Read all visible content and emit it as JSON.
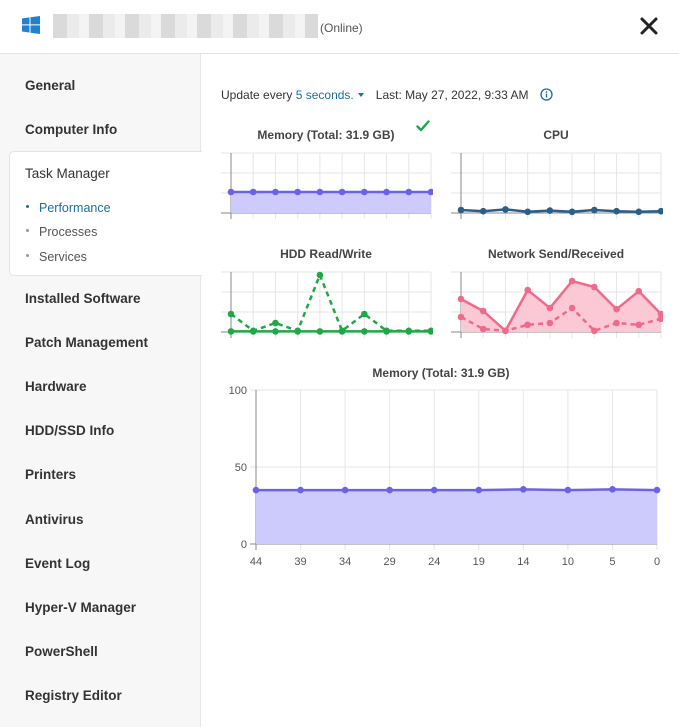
{
  "header": {
    "status": "(Online)"
  },
  "sidebar": {
    "items": [
      {
        "label": "General"
      },
      {
        "label": "Computer Info"
      },
      {
        "label": "Task Manager"
      },
      {
        "label": "Installed Software"
      },
      {
        "label": "Patch Management"
      },
      {
        "label": "Hardware"
      },
      {
        "label": "HDD/SSD Info"
      },
      {
        "label": "Printers"
      },
      {
        "label": "Antivirus"
      },
      {
        "label": "Event Log"
      },
      {
        "label": "Hyper-V Manager"
      },
      {
        "label": "PowerShell"
      },
      {
        "label": "Registry Editor"
      }
    ],
    "task_manager_sub": [
      {
        "label": "Performance",
        "active": true
      },
      {
        "label": "Processes",
        "active": false
      },
      {
        "label": "Services",
        "active": false
      }
    ]
  },
  "toolbar": {
    "update_prefix": "Update every",
    "interval": "5 seconds.",
    "last_updated": "Last: May 27, 2022, 9:33 AM"
  },
  "colors": {
    "memory": "#6b63e6",
    "memory_fill": "#cccbfb",
    "cpu": "#2b5f8a",
    "hdd": "#22a648",
    "network": "#f06a8c",
    "network_fill": "#fbc9d5",
    "link": "#1c6ea4",
    "check": "#22a648"
  },
  "chart_data": [
    {
      "type": "area",
      "title": "Memory (Total: 31.9 GB)",
      "status_icon": "check-icon",
      "series": [
        {
          "values": [
            35,
            35,
            35,
            35,
            35,
            35,
            35,
            35,
            35,
            35
          ]
        }
      ],
      "ylim": [
        0,
        100
      ]
    },
    {
      "type": "line",
      "title": "CPU",
      "series": [
        {
          "values": [
            5,
            3,
            6,
            2,
            4,
            2,
            5,
            3,
            2,
            3
          ]
        }
      ],
      "ylim": [
        0,
        100
      ]
    },
    {
      "type": "line",
      "title": "HDD Read/Write",
      "series": [
        {
          "values": [
            1,
            1,
            1,
            1,
            1,
            1,
            1,
            1,
            1,
            1
          ]
        },
        {
          "values": [
            30,
            2,
            15,
            2,
            95,
            2,
            30,
            2,
            2,
            2
          ]
        }
      ],
      "ylim": [
        0,
        100
      ]
    },
    {
      "type": "area",
      "title": "Network Send/Received",
      "series": [
        {
          "values": [
            55,
            35,
            2,
            70,
            40,
            85,
            75,
            38,
            68,
            30
          ]
        },
        {
          "values": [
            25,
            5,
            2,
            12,
            15,
            40,
            2,
            15,
            12,
            22
          ]
        }
      ],
      "ylim": [
        0,
        100
      ]
    },
    {
      "type": "area",
      "title": "Memory (Total: 31.9 GB)",
      "x": [
        44,
        39,
        34,
        29,
        24,
        19,
        14,
        10,
        5,
        0
      ],
      "series": [
        {
          "values": [
            35,
            35,
            35,
            35,
            35,
            35,
            35.5,
            35,
            35.5,
            35
          ]
        }
      ],
      "ylim": [
        0,
        100
      ],
      "yticks": [
        0,
        50,
        100
      ]
    }
  ]
}
